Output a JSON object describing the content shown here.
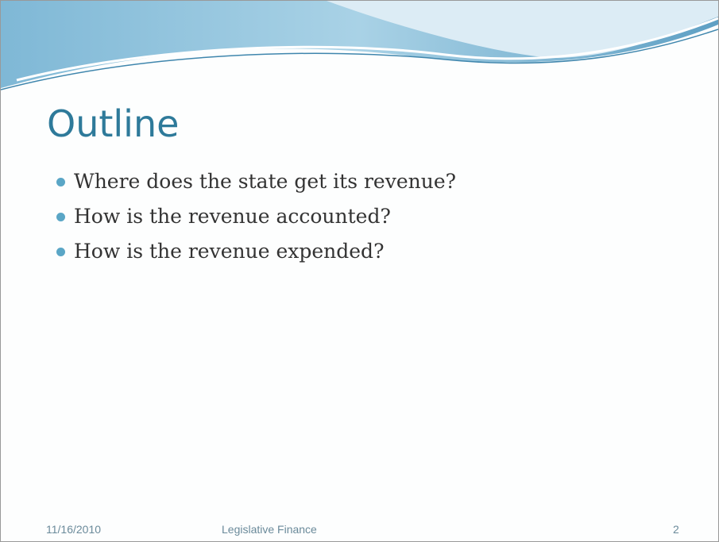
{
  "slide": {
    "title": "Outline",
    "bullets": [
      "Where does the state get its revenue?",
      "How is the revenue accounted?",
      "How is the revenue expended?"
    ],
    "footer": {
      "date": "11/16/2010",
      "center": "Legislative Finance",
      "page": "2"
    }
  }
}
